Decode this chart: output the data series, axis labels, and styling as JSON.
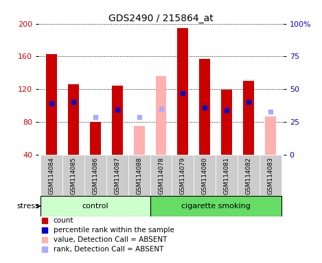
{
  "title": "GDS2490 / 215864_at",
  "samples": [
    "GSM114084",
    "GSM114085",
    "GSM114086",
    "GSM114087",
    "GSM114088",
    "GSM114078",
    "GSM114079",
    "GSM114080",
    "GSM114081",
    "GSM114082",
    "GSM114083"
  ],
  "count_values": [
    163,
    126,
    80,
    124,
    null,
    null,
    195,
    157,
    119,
    130,
    null
  ],
  "count_absent_values": [
    null,
    null,
    null,
    null,
    75,
    136,
    null,
    null,
    null,
    null,
    87
  ],
  "rank_values": [
    103,
    104,
    null,
    95,
    null,
    null,
    115,
    98,
    94,
    104,
    null
  ],
  "rank_absent_values": [
    null,
    null,
    86,
    null,
    86,
    96,
    null,
    null,
    null,
    null,
    93
  ],
  "ylim_left": [
    40,
    200
  ],
  "ylim_right": [
    0,
    100
  ],
  "yticks_left": [
    40,
    80,
    120,
    160,
    200
  ],
  "yticks_right": [
    0,
    25,
    50,
    75,
    100
  ],
  "ytick_labels_right": [
    "0",
    "25",
    "50",
    "75",
    "100%"
  ],
  "bar_width": 0.5,
  "bar_color_count": "#cc0000",
  "bar_color_absent": "#ffb0b0",
  "rank_color": "#0000cc",
  "rank_absent_color": "#aaaaff",
  "control_samples": [
    "GSM114084",
    "GSM114085",
    "GSM114086",
    "GSM114087",
    "GSM114088"
  ],
  "smoking_samples": [
    "GSM114078",
    "GSM114079",
    "GSM114080",
    "GSM114081",
    "GSM114082",
    "GSM114083"
  ],
  "control_color": "#ccffcc",
  "smoking_color": "#66dd66",
  "background_color": "#ffffff",
  "grid_color": "#000000",
  "axis_color_left": "#cc0000",
  "axis_color_right": "#0000cc",
  "label_bg_color": "#cccccc"
}
